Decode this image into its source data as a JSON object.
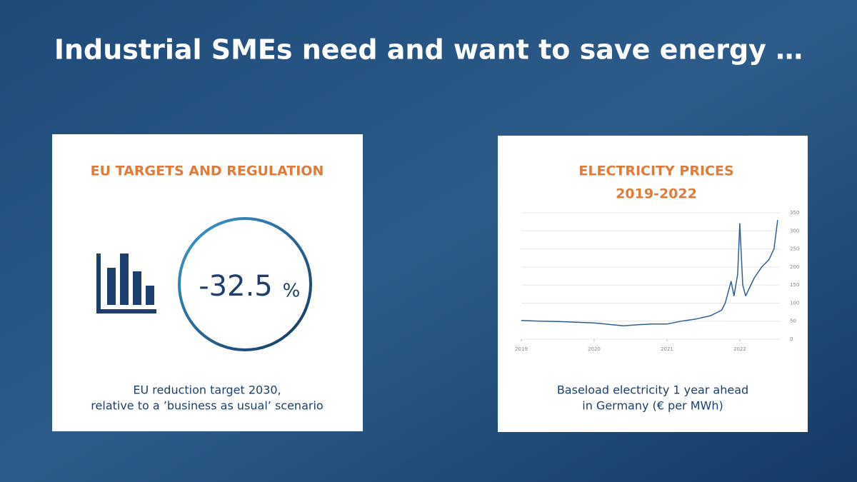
{
  "header": {
    "title": "Industrial SMEs need and want to save energy …"
  },
  "left_card": {
    "title": "EU TARGETS AND REGULATION",
    "figure": "-32.5",
    "figure_unit": "%",
    "caption": [
      "EU reduction target 2030,",
      "relative to a ’business as usual’ scenario"
    ]
  },
  "right_card": {
    "title": [
      "ELECTRICITY PRICES",
      "2019-2022"
    ],
    "caption": [
      "Baseload electricity 1 year ahead",
      "in Germany (€ per MWh)"
    ],
    "chart_data": {
      "type": "line",
      "x": [
        2019,
        2019.25,
        2019.5,
        2019.75,
        2020,
        2020.25,
        2020.4,
        2020.6,
        2020.8,
        2021,
        2021.2,
        2021.4,
        2021.6,
        2021.75,
        2021.8,
        2021.88,
        2021.92,
        2021.97,
        2022.0,
        2022.04,
        2022.08,
        2022.2,
        2022.3,
        2022.4,
        2022.47,
        2022.52
      ],
      "series": [
        {
          "name": "Baseload",
          "color": "#2f5f95",
          "values": [
            52,
            50,
            49,
            47,
            45,
            40,
            37,
            40,
            42,
            42,
            50,
            56,
            65,
            80,
            100,
            160,
            120,
            180,
            320,
            150,
            120,
            170,
            200,
            220,
            250,
            330
          ]
        }
      ],
      "xlim": [
        2019,
        2022.55
      ],
      "xticks": [
        2019,
        2020,
        2021,
        2022
      ],
      "ylim": [
        0,
        350
      ],
      "yticks": [
        0,
        50,
        100,
        150,
        200,
        250,
        300,
        350
      ],
      "grid": true
    }
  }
}
